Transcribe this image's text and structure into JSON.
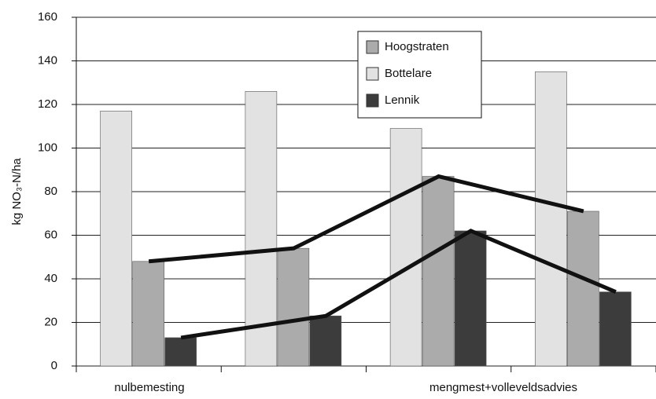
{
  "chart_data": {
    "type": "bar",
    "y_label": "kg NO₃-N/ha",
    "categories": [
      null,
      null,
      null,
      null
    ],
    "group_labels": [
      "nulbemesting",
      "mengmest+volleveldsadvies"
    ],
    "series": [
      {
        "name": "Bottelare",
        "color": "#e2e2e2",
        "values": [
          117,
          126,
          109,
          135
        ]
      },
      {
        "name": "Hoogstraten",
        "color": "#ababab",
        "values": [
          48,
          54,
          87,
          71
        ],
        "line": true
      },
      {
        "name": "Lennik",
        "color": "#3c3c3c",
        "values": [
          13,
          23,
          62,
          34
        ],
        "line": true
      }
    ],
    "legend_order": [
      1,
      0,
      2
    ],
    "legend": "top-center",
    "ylim": [
      0,
      160
    ],
    "yticks": [
      0,
      20,
      40,
      60,
      80,
      100,
      120,
      140,
      160
    ],
    "grid": true
  }
}
